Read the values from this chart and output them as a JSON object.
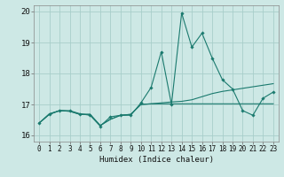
{
  "title": "",
  "xlabel": "Humidex (Indice chaleur)",
  "xlim": [
    -0.5,
    23.5
  ],
  "ylim": [
    15.8,
    20.2
  ],
  "yticks": [
    16,
    17,
    18,
    19,
    20
  ],
  "xticks": [
    0,
    1,
    2,
    3,
    4,
    5,
    6,
    7,
    8,
    9,
    10,
    11,
    12,
    13,
    14,
    15,
    16,
    17,
    18,
    19,
    20,
    21,
    22,
    23
  ],
  "bg_color": "#cde8e5",
  "grid_color": "#a8ceca",
  "line_color": "#1a7a6e",
  "series0": [
    16.4,
    16.7,
    16.8,
    16.8,
    16.7,
    16.65,
    16.3,
    16.6,
    16.65,
    16.65,
    17.05,
    17.55,
    18.7,
    17.0,
    19.95,
    18.85,
    19.3,
    18.5,
    17.8,
    17.5,
    16.8,
    16.65,
    17.2,
    17.4
  ],
  "series1": [
    16.4,
    16.68,
    16.8,
    16.78,
    16.68,
    16.68,
    16.32,
    16.52,
    16.65,
    16.68,
    17.0,
    17.02,
    17.02,
    17.02,
    17.02,
    17.02,
    17.02,
    17.02,
    17.02,
    17.02,
    17.02,
    17.02,
    17.02,
    17.02
  ],
  "series2": [
    16.4,
    16.68,
    16.8,
    16.78,
    16.68,
    16.68,
    16.32,
    16.52,
    16.65,
    16.68,
    17.0,
    17.02,
    17.05,
    17.08,
    17.1,
    17.15,
    17.25,
    17.35,
    17.42,
    17.47,
    17.52,
    17.57,
    17.62,
    17.67
  ]
}
